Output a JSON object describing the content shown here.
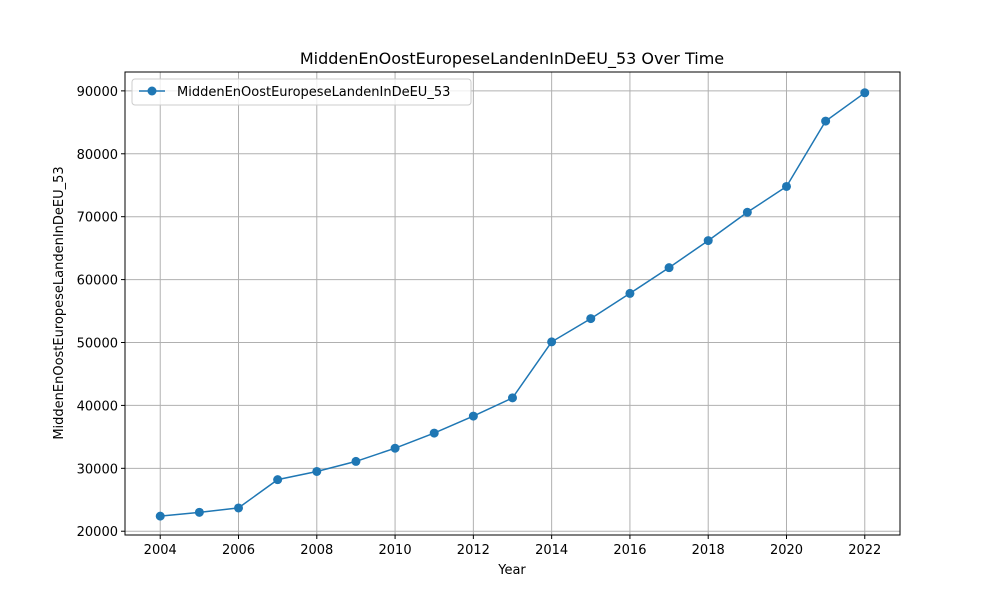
{
  "chart_data": {
    "type": "line",
    "title": "MiddenEnOostEuropeseLandenInDeEU_53 Over Time",
    "xlabel": "Year",
    "ylabel": "MiddenEnOostEuropeseLandenInDeEU_53",
    "xlim": [
      2003.1,
      2022.9
    ],
    "ylim": [
      19400,
      93000
    ],
    "x_ticks": [
      2004,
      2006,
      2008,
      2010,
      2012,
      2014,
      2016,
      2018,
      2020,
      2022
    ],
    "y_ticks": [
      20000,
      30000,
      40000,
      50000,
      60000,
      70000,
      80000,
      90000
    ],
    "grid": true,
    "legend_position": "top-left",
    "series": [
      {
        "name": "MiddenEnOostEuropeseLandenInDeEU_53",
        "color": "#1f77b4",
        "x": [
          2004,
          2005,
          2006,
          2007,
          2008,
          2009,
          2010,
          2011,
          2012,
          2013,
          2014,
          2015,
          2016,
          2017,
          2018,
          2019,
          2020,
          2021,
          2022
        ],
        "y": [
          22400,
          23000,
          23700,
          28200,
          29500,
          31100,
          33200,
          35600,
          38300,
          41200,
          50100,
          53800,
          57800,
          61900,
          66200,
          70700,
          74800,
          85200,
          89700
        ]
      }
    ]
  }
}
